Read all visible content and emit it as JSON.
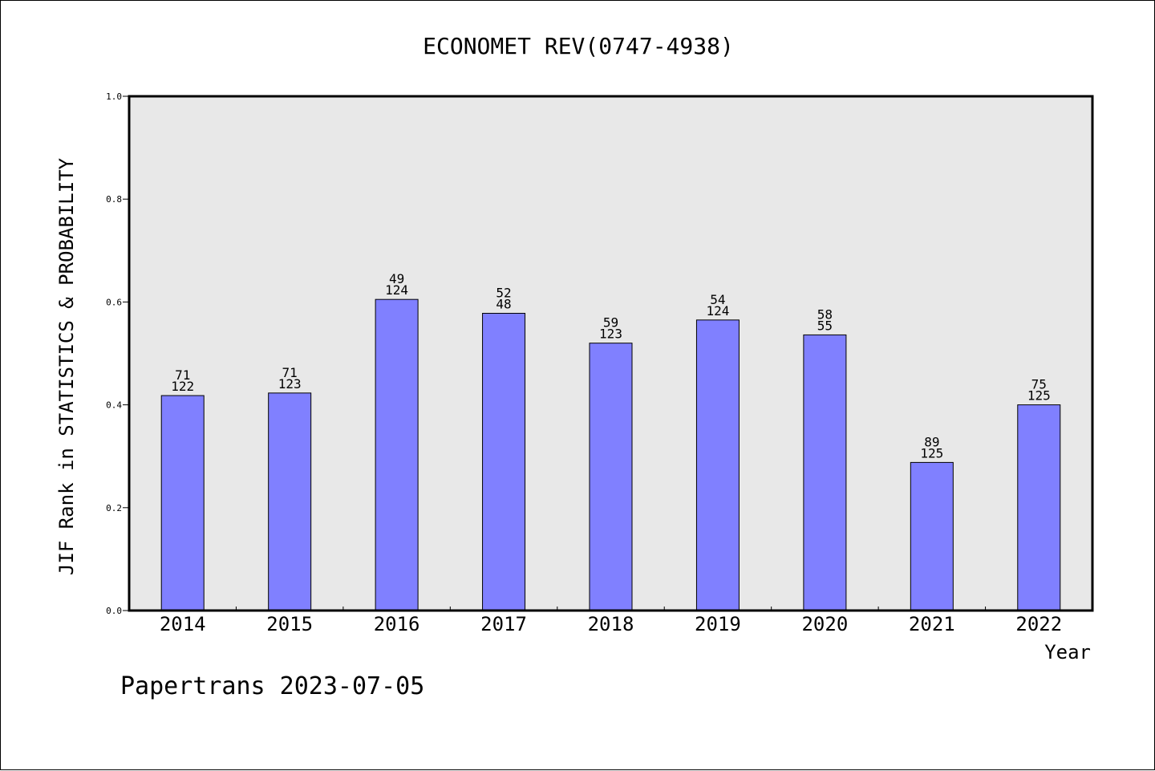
{
  "chart_data": {
    "type": "bar",
    "title": "ECONOMET REV(0747-4938)",
    "xlabel": "Year",
    "ylabel": "JIF Rank in STATISTICS & PROBABILITY",
    "categories": [
      "2014",
      "2015",
      "2016",
      "2017",
      "2018",
      "2019",
      "2020",
      "2021",
      "2022"
    ],
    "values": [
      0.418,
      0.423,
      0.605,
      0.578,
      0.52,
      0.565,
      0.536,
      0.288,
      0.4
    ],
    "ranks": [
      "71",
      "71",
      "49",
      "52",
      "59",
      "54",
      "58",
      "89",
      "75"
    ],
    "totals": [
      "122",
      "123",
      "124",
      "48",
      "123",
      "124",
      "55",
      "125",
      "125"
    ],
    "ylim": [
      0,
      1.0
    ],
    "yticks": [
      "0.0",
      "0.2",
      "0.4",
      "0.6",
      "0.8",
      "1.0"
    ],
    "grid": false,
    "colors": {
      "bar": "#8080ff",
      "plot_background": "#e8e8e8"
    }
  },
  "footer": "Papertrans 2023-07-05"
}
